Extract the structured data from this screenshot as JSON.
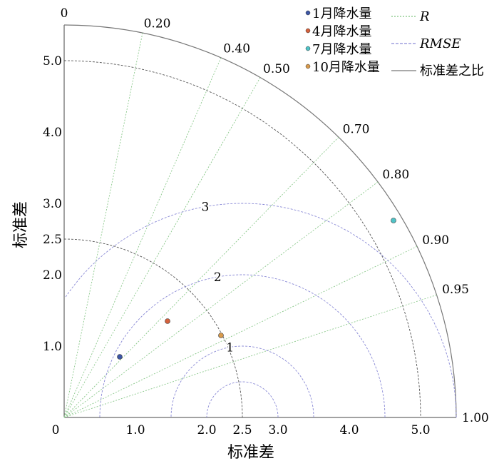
{
  "chart_data": {
    "type": "taylor",
    "x_axis_label": "标准差",
    "y_axis_label": "标准差",
    "std_max": 5.5,
    "reference_std": 2.5,
    "radial_ticks": [
      {
        "value": 0,
        "label": "0"
      },
      {
        "value": 1.0,
        "label": "1.0"
      },
      {
        "value": 2.0,
        "label": "2.0"
      },
      {
        "value": 2.5,
        "label": "2.5"
      },
      {
        "value": 3.0,
        "label": "3.0"
      },
      {
        "value": 4.0,
        "label": "4.0"
      },
      {
        "value": 5.0,
        "label": "5.0"
      }
    ],
    "std_arcs": [
      2.5,
      5.0,
      5.5
    ],
    "correlation_lines": [
      {
        "r": 0,
        "label": "0"
      },
      {
        "r": 0.2,
        "label": "0.20"
      },
      {
        "r": 0.4,
        "label": "0.40"
      },
      {
        "r": 0.5,
        "label": "0.50"
      },
      {
        "r": 0.7,
        "label": "0.70"
      },
      {
        "r": 0.8,
        "label": "0.80"
      },
      {
        "r": 0.9,
        "label": "0.90"
      },
      {
        "r": 0.95,
        "label": "0.95"
      },
      {
        "r": 1.0,
        "label": "1.00"
      }
    ],
    "rmse_arcs": [
      0.5,
      1.0,
      2.0,
      3.0
    ],
    "rmse_labels": [
      {
        "value": 1,
        "label": "1"
      },
      {
        "value": 2,
        "label": "2"
      },
      {
        "value": 3,
        "label": "3"
      }
    ],
    "points": [
      {
        "name": "1月降水量",
        "x": 0.78,
        "y": 0.85,
        "color": "#3d56a6"
      },
      {
        "name": "4月降水量",
        "x": 1.45,
        "y": 1.35,
        "color": "#d5613c"
      },
      {
        "name": "7月降水量",
        "x": 4.62,
        "y": 2.76,
        "color": "#4fc3c7"
      },
      {
        "name": "10月降水量",
        "x": 2.2,
        "y": 1.15,
        "color": "#d89a4c"
      }
    ],
    "legend_lines": [
      {
        "name": "R",
        "style": "dotted",
        "color": "#7fc47f"
      },
      {
        "name": "RMSE",
        "style": "dashed",
        "color": "#8a8ad6"
      },
      {
        "name": "标准差之比",
        "style": "solid",
        "color": "#777777"
      }
    ]
  }
}
